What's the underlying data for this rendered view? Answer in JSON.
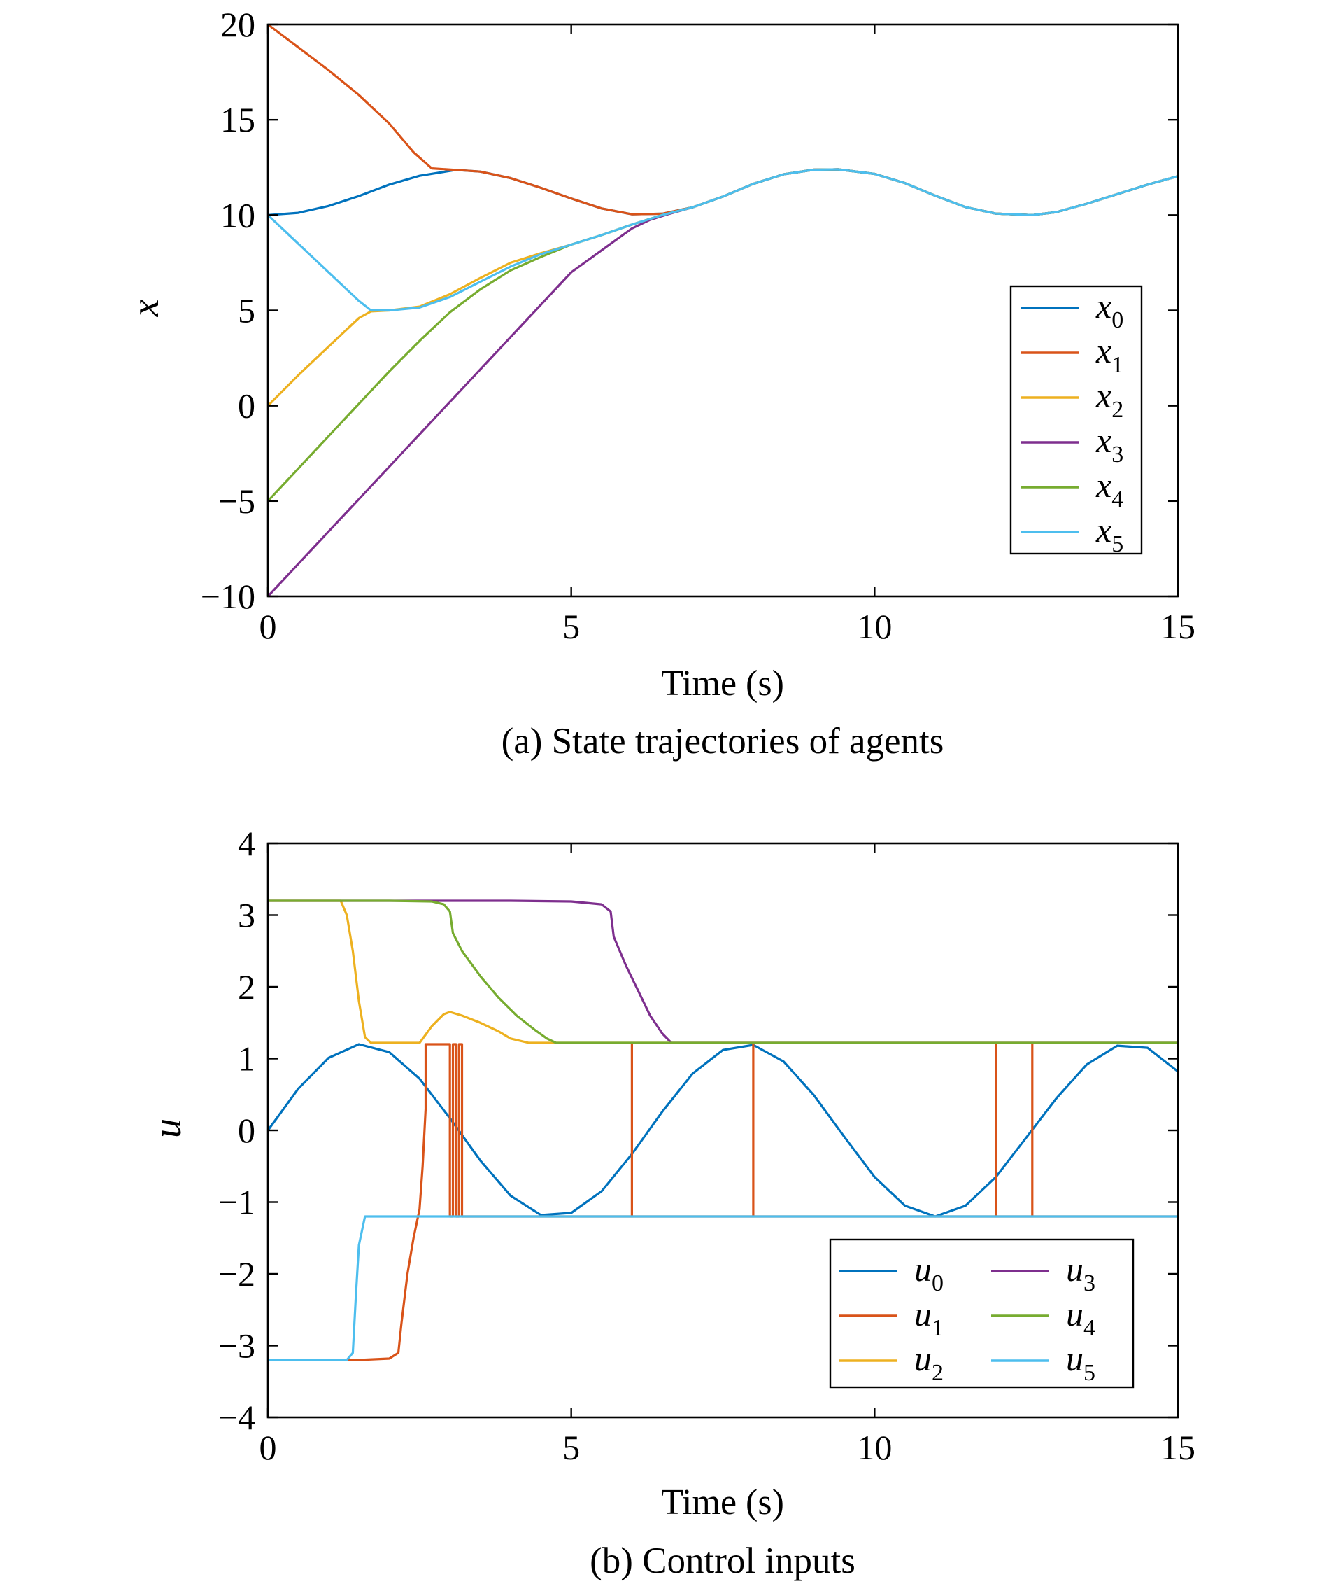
{
  "figure": {
    "caption_a": "(a) State trajectories of agents",
    "caption_b": "(b) Control inputs"
  },
  "chart_data": [
    {
      "type": "line",
      "caption": "(a) State trajectories of agents",
      "xlabel": "Time (s)",
      "ylabel": "x",
      "xlim": [
        0,
        15
      ],
      "ylim": [
        -10,
        20
      ],
      "xticks": [
        "0",
        "5",
        "10",
        "15"
      ],
      "yticks": [
        "20",
        "15",
        "10",
        "5",
        "0",
        "−10"
      ],
      "yticks_all": [
        "20",
        "15",
        "10",
        "5",
        "0",
        "−5",
        "−10"
      ],
      "legend_position": "right",
      "grid": false,
      "series": [
        {
          "name": "x",
          "sub": "0",
          "color": "#0072BD",
          "x": [
            0,
            0.5,
            1.0,
            1.5,
            2.0,
            2.5,
            3.1,
            3.5,
            4.0,
            4.5,
            5.0,
            5.5,
            6.0,
            6.5,
            7.0,
            7.5,
            8.0,
            8.5,
            9.0,
            9.4,
            10.0,
            10.5,
            11.0,
            11.5,
            12.0,
            12.6,
            13.0,
            13.5,
            14.0,
            14.5,
            15.0
          ],
          "y": [
            10.0,
            10.12,
            10.48,
            11.0,
            11.6,
            12.06,
            12.37,
            12.28,
            11.94,
            11.43,
            10.87,
            10.35,
            10.04,
            10.07,
            10.41,
            10.97,
            11.64,
            12.14,
            12.38,
            12.4,
            12.16,
            11.68,
            11.02,
            10.42,
            10.08,
            10.0,
            10.16,
            10.6,
            11.1,
            11.6,
            12.04
          ]
        },
        {
          "name": "x",
          "sub": "1",
          "color": "#D95319",
          "x": [
            0,
            0.5,
            1.0,
            1.5,
            2.0,
            2.4,
            2.7,
            3.1,
            3.5,
            4.0,
            4.5,
            5.0,
            5.5,
            6.0,
            6.5,
            7.0,
            7.5,
            8.0,
            8.5,
            9.0,
            9.4,
            10.0,
            10.5,
            11.0,
            11.5,
            12.0,
            12.6,
            13.0,
            13.5,
            14.0,
            14.5,
            15.0
          ],
          "y": [
            20.0,
            18.8,
            17.6,
            16.3,
            14.8,
            13.3,
            12.45,
            12.37,
            12.28,
            11.94,
            11.43,
            10.87,
            10.35,
            10.04,
            10.07,
            10.41,
            10.97,
            11.64,
            12.14,
            12.38,
            12.4,
            12.16,
            11.68,
            11.02,
            10.42,
            10.08,
            10.0,
            10.16,
            10.6,
            11.1,
            11.6,
            12.04
          ]
        },
        {
          "name": "x",
          "sub": "2",
          "color": "#EDB120",
          "x": [
            0,
            0.5,
            1.0,
            1.5,
            1.7,
            2.0,
            2.5,
            3.0,
            3.5,
            4.0,
            4.5,
            5.0,
            5.5,
            6.0,
            6.5,
            7.0,
            7.5,
            8.0,
            8.5,
            9.0,
            9.4,
            10.0,
            10.5,
            11.0,
            11.5,
            12.0,
            12.6,
            13.0,
            13.5,
            14.0,
            14.5,
            15.0
          ],
          "y": [
            0.0,
            1.6,
            3.1,
            4.6,
            4.95,
            5.0,
            5.2,
            5.85,
            6.7,
            7.5,
            8.0,
            8.45,
            8.95,
            9.5,
            10.0,
            10.41,
            10.97,
            11.64,
            12.14,
            12.38,
            12.4,
            12.16,
            11.68,
            11.02,
            10.42,
            10.08,
            10.0,
            10.16,
            10.6,
            11.1,
            11.6,
            12.04
          ]
        },
        {
          "name": "x",
          "sub": "3",
          "color": "#7E2F8E",
          "x": [
            0,
            1.0,
            2.0,
            3.0,
            4.0,
            5.0,
            6.0,
            6.3,
            6.6,
            7.0,
            7.5,
            8.0,
            8.5,
            9.0,
            9.4,
            10.0,
            10.5,
            11.0,
            11.5,
            12.0,
            12.6,
            13.0,
            13.5,
            14.0,
            14.5,
            15.0
          ],
          "y": [
            -10.0,
            -6.6,
            -3.2,
            0.2,
            3.6,
            7.0,
            9.3,
            9.75,
            10.05,
            10.41,
            10.97,
            11.64,
            12.14,
            12.38,
            12.4,
            12.16,
            11.68,
            11.02,
            10.42,
            10.08,
            10.0,
            10.16,
            10.6,
            11.1,
            11.6,
            12.04
          ]
        },
        {
          "name": "x",
          "sub": "4",
          "color": "#77AC30",
          "x": [
            0,
            0.5,
            1.0,
            1.5,
            2.0,
            2.5,
            3.0,
            3.5,
            4.0,
            4.5,
            5.0,
            5.5,
            6.0,
            6.5,
            7.0,
            7.5,
            8.0,
            8.5,
            9.0,
            9.4,
            10.0,
            10.5,
            11.0,
            11.5,
            12.0,
            12.6,
            13.0,
            13.5,
            14.0,
            14.5,
            15.0
          ],
          "y": [
            -5.0,
            -3.3,
            -1.6,
            0.1,
            1.8,
            3.4,
            4.9,
            6.1,
            7.1,
            7.8,
            8.45,
            8.95,
            9.5,
            10.0,
            10.41,
            10.97,
            11.64,
            12.14,
            12.38,
            12.4,
            12.16,
            11.68,
            11.02,
            10.42,
            10.08,
            10.0,
            10.16,
            10.6,
            11.1,
            11.6,
            12.04
          ]
        },
        {
          "name": "x",
          "sub": "5",
          "color": "#4DBEEE",
          "x": [
            0,
            0.5,
            1.0,
            1.5,
            1.7,
            2.0,
            2.5,
            3.0,
            3.5,
            4.0,
            4.5,
            5.0,
            5.5,
            6.0,
            6.5,
            7.0,
            7.5,
            8.0,
            8.5,
            9.0,
            9.4,
            10.0,
            10.5,
            11.0,
            11.5,
            12.0,
            12.6,
            13.0,
            13.5,
            14.0,
            14.5,
            15.0
          ],
          "y": [
            10.0,
            8.5,
            7.0,
            5.5,
            5.0,
            5.0,
            5.15,
            5.7,
            6.5,
            7.3,
            7.95,
            8.45,
            8.95,
            9.5,
            10.0,
            10.41,
            10.97,
            11.64,
            12.14,
            12.38,
            12.4,
            12.16,
            11.68,
            11.02,
            10.42,
            10.08,
            10.0,
            10.16,
            10.6,
            11.1,
            11.6,
            12.04
          ]
        }
      ]
    },
    {
      "type": "line",
      "caption": "(b) Control inputs",
      "xlabel": "Time (s)",
      "ylabel": "u",
      "xlim": [
        0,
        15
      ],
      "ylim": [
        -4,
        4
      ],
      "xticks": [
        "0",
        "5",
        "10",
        "15"
      ],
      "yticks": [
        "4",
        "3",
        "2",
        "1",
        "0",
        "−1",
        "−2",
        "−3",
        "−4"
      ],
      "legend_position": "bottom-right",
      "legend_columns": 2,
      "grid": false,
      "series": [
        {
          "name": "u",
          "sub": "0",
          "color": "#0072BD",
          "x": [
            0,
            0.5,
            1.0,
            1.5,
            2.0,
            2.5,
            3.0,
            3.5,
            4.0,
            4.5,
            5.0,
            5.5,
            6.0,
            6.5,
            7.0,
            7.5,
            8.0,
            8.5,
            9.0,
            9.5,
            10.0,
            10.5,
            11.0,
            11.5,
            12.0,
            12.5,
            13.0,
            13.5,
            14.0,
            14.5,
            15.0
          ],
          "y": [
            0.0,
            0.58,
            1.01,
            1.2,
            1.09,
            0.72,
            0.17,
            -0.42,
            -0.91,
            -1.18,
            -1.15,
            -0.85,
            -0.33,
            0.26,
            0.79,
            1.12,
            1.19,
            0.96,
            0.49,
            -0.09,
            -0.65,
            -1.05,
            -1.2,
            -1.05,
            -0.65,
            -0.1,
            0.45,
            0.92,
            1.18,
            1.15,
            0.82
          ]
        },
        {
          "name": "u",
          "sub": "1",
          "color": "#D95319",
          "x": [
            0,
            1.0,
            1.5,
            2.0,
            2.15,
            2.2,
            2.3,
            2.4,
            2.5,
            2.55,
            2.6,
            2.6,
            3.0,
            3.0,
            3.05,
            3.05,
            3.1,
            3.1,
            3.15,
            3.15,
            3.2,
            3.2,
            3.3,
            3.3,
            4.0,
            5.0,
            6.0,
            6.0,
            6.0,
            8.0,
            8.0,
            8.0,
            8.0,
            8.0,
            10.0,
            12.0,
            12.0,
            12.0,
            12.0,
            12.0,
            12.6,
            12.6,
            12.6,
            14.0,
            15.0
          ],
          "y": [
            -3.2,
            -3.2,
            -3.2,
            -3.18,
            -3.1,
            -2.7,
            -2.0,
            -1.5,
            -1.1,
            -0.5,
            0.3,
            1.2,
            1.2,
            -1.2,
            -1.2,
            1.2,
            1.2,
            -1.2,
            -1.2,
            1.2,
            1.2,
            -1.2,
            -1.2,
            -1.2,
            -1.2,
            -1.2,
            -1.2,
            1.2,
            -1.2,
            -1.2,
            1.2,
            -1.2,
            1.2,
            -1.2,
            -1.2,
            -1.2,
            1.2,
            -1.2,
            1.2,
            -1.2,
            -1.2,
            1.2,
            -1.2,
            -1.2,
            -1.2
          ]
        },
        {
          "name": "u",
          "sub": "2",
          "color": "#EDB120",
          "x": [
            0,
            0.5,
            1.0,
            1.2,
            1.3,
            1.4,
            1.5,
            1.6,
            1.7,
            2.0,
            2.5,
            2.7,
            2.9,
            3.0,
            3.2,
            3.5,
            3.8,
            4.0,
            4.3,
            4.6,
            5.0,
            6.0,
            7.0,
            8.0,
            9.0,
            10.0,
            11.0,
            12.0,
            13.0,
            14.0,
            15.0
          ],
          "y": [
            3.2,
            3.2,
            3.2,
            3.2,
            3.0,
            2.5,
            1.8,
            1.3,
            1.22,
            1.22,
            1.22,
            1.45,
            1.62,
            1.65,
            1.6,
            1.5,
            1.38,
            1.28,
            1.22,
            1.22,
            1.22,
            1.22,
            1.22,
            1.22,
            1.22,
            1.22,
            1.22,
            1.22,
            1.22,
            1.22,
            1.22
          ]
        },
        {
          "name": "u",
          "sub": "3",
          "color": "#7E2F8E",
          "x": [
            0,
            1.0,
            2.0,
            3.0,
            4.0,
            5.0,
            5.5,
            5.65,
            5.7,
            5.75,
            5.9,
            6.1,
            6.3,
            6.5,
            6.65,
            6.8,
            7.0,
            8.0,
            9.0,
            10.0,
            11.0,
            12.0,
            13.0,
            14.0,
            15.0
          ],
          "y": [
            3.2,
            3.2,
            3.2,
            3.2,
            3.2,
            3.19,
            3.15,
            3.05,
            2.7,
            2.6,
            2.3,
            1.95,
            1.6,
            1.35,
            1.22,
            1.22,
            1.22,
            1.22,
            1.22,
            1.22,
            1.22,
            1.22,
            1.22,
            1.22,
            1.22
          ]
        },
        {
          "name": "u",
          "sub": "4",
          "color": "#77AC30",
          "x": [
            0,
            1.0,
            2.0,
            2.7,
            2.9,
            3.0,
            3.05,
            3.2,
            3.5,
            3.8,
            4.1,
            4.4,
            4.6,
            4.75,
            5.0,
            6.0,
            7.0,
            8.0,
            9.0,
            10.0,
            11.0,
            12.0,
            13.0,
            14.0,
            15.0
          ],
          "y": [
            3.2,
            3.2,
            3.2,
            3.19,
            3.15,
            3.05,
            2.75,
            2.5,
            2.15,
            1.85,
            1.6,
            1.4,
            1.28,
            1.22,
            1.22,
            1.22,
            1.22,
            1.22,
            1.22,
            1.22,
            1.22,
            1.22,
            1.22,
            1.22,
            1.22
          ]
        },
        {
          "name": "u",
          "sub": "5",
          "color": "#4DBEEE",
          "x": [
            0,
            0.5,
            1.0,
            1.3,
            1.4,
            1.45,
            1.5,
            1.6,
            1.7,
            2.0,
            2.2,
            2.5,
            3.0,
            3.3,
            3.6,
            3.9,
            4.2,
            4.5,
            5.0,
            6.0,
            7.0,
            8.0,
            9.0,
            10.0,
            11.0,
            12.0,
            13.0,
            14.0,
            15.0
          ],
          "y": [
            -3.2,
            -3.2,
            -3.2,
            -3.2,
            -3.1,
            -2.3,
            -1.6,
            -1.2,
            -1.2,
            -1.2,
            -1.2,
            -1.2,
            -1.2,
            -1.2,
            -1.2,
            -1.2,
            -1.2,
            -1.2,
            -1.2,
            -1.2,
            -1.2,
            -1.2,
            -1.2,
            -1.2,
            -1.2,
            -1.2,
            -1.2,
            -1.2,
            -1.2
          ]
        }
      ]
    }
  ]
}
